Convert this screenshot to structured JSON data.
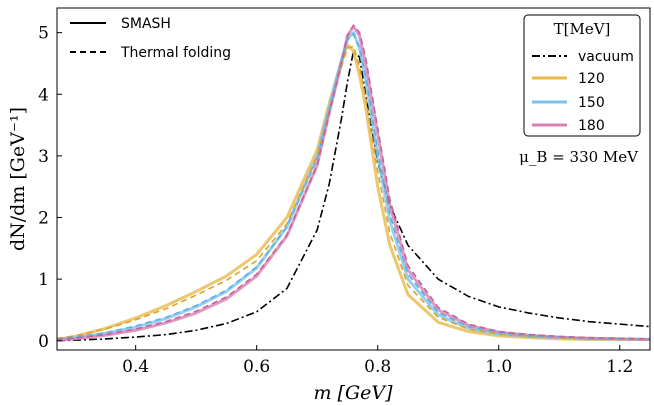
{
  "chart_data": {
    "type": "line",
    "xlabel": "m [GeV]",
    "ylabel": "dN/dm [GeV⁻¹]",
    "xlim": [
      0.27,
      1.25
    ],
    "ylim": [
      -0.15,
      5.4
    ],
    "x_ticks": [
      "0.4",
      "0.6",
      "0.8",
      "1.0",
      "1.2"
    ],
    "y_ticks": [
      "0",
      "1",
      "2",
      "3",
      "4",
      "5"
    ],
    "style_legend": {
      "placement": "top-left",
      "entries": [
        {
          "label": "SMASH",
          "dash": "solid"
        },
        {
          "label": "Thermal folding",
          "dash": "dashed"
        }
      ]
    },
    "temperature_legend": {
      "placement": "top-right",
      "title": "T[MeV]",
      "entries": [
        {
          "label": "vacuum",
          "color": "#000000",
          "dash": "dashdot"
        },
        {
          "label": "120",
          "color": "#e8b84a",
          "dash": "solid"
        },
        {
          "label": "150",
          "color": "#7cc3ec",
          "dash": "solid"
        },
        {
          "label": "180",
          "color": "#d67fb1",
          "dash": "solid"
        }
      ]
    },
    "annotation": "μ_B = 330 MeV",
    "series": [
      {
        "name": "vacuum",
        "color": "#000000",
        "dash": "dashdot",
        "x": [
          0.27,
          0.3,
          0.35,
          0.4,
          0.45,
          0.5,
          0.55,
          0.6,
          0.65,
          0.7,
          0.72,
          0.74,
          0.75,
          0.76,
          0.77,
          0.78,
          0.8,
          0.82,
          0.85,
          0.9,
          0.95,
          1.0,
          1.05,
          1.1,
          1.15,
          1.2,
          1.25
        ],
        "y": [
          0.0,
          0.01,
          0.03,
          0.06,
          0.1,
          0.17,
          0.28,
          0.47,
          0.85,
          1.8,
          2.55,
          3.6,
          4.2,
          4.7,
          4.6,
          4.0,
          2.9,
          2.2,
          1.55,
          1.0,
          0.72,
          0.55,
          0.45,
          0.37,
          0.31,
          0.27,
          0.23
        ]
      },
      {
        "name": "120",
        "color": "#e8b84a",
        "dash": "solid",
        "x": [
          0.27,
          0.3,
          0.35,
          0.4,
          0.45,
          0.5,
          0.55,
          0.6,
          0.65,
          0.7,
          0.72,
          0.74,
          0.75,
          0.76,
          0.77,
          0.78,
          0.8,
          0.82,
          0.85,
          0.9,
          0.95,
          1.0,
          1.05,
          1.1,
          1.15,
          1.2,
          1.25
        ],
        "y": [
          0.02,
          0.07,
          0.2,
          0.37,
          0.57,
          0.8,
          1.05,
          1.4,
          2.0,
          3.1,
          3.85,
          4.55,
          4.8,
          4.7,
          4.3,
          3.8,
          2.5,
          1.55,
          0.75,
          0.3,
          0.15,
          0.08,
          0.05,
          0.03,
          0.02,
          0.02,
          0.02
        ]
      },
      {
        "name": "150",
        "color": "#7cc3ec",
        "dash": "solid",
        "x": [
          0.27,
          0.3,
          0.35,
          0.4,
          0.45,
          0.5,
          0.55,
          0.6,
          0.65,
          0.7,
          0.72,
          0.74,
          0.75,
          0.76,
          0.77,
          0.78,
          0.8,
          0.82,
          0.85,
          0.9,
          0.95,
          1.0,
          1.05,
          1.1,
          1.15,
          1.2,
          1.25
        ],
        "y": [
          0.02,
          0.05,
          0.12,
          0.22,
          0.36,
          0.55,
          0.8,
          1.18,
          1.85,
          3.0,
          3.8,
          4.55,
          4.9,
          5.0,
          4.75,
          4.25,
          3.0,
          1.95,
          1.0,
          0.42,
          0.2,
          0.11,
          0.07,
          0.05,
          0.03,
          0.03,
          0.02
        ]
      },
      {
        "name": "180",
        "color": "#d67fb1",
        "dash": "solid",
        "x": [
          0.27,
          0.3,
          0.35,
          0.4,
          0.45,
          0.5,
          0.55,
          0.6,
          0.65,
          0.7,
          0.72,
          0.74,
          0.75,
          0.76,
          0.77,
          0.78,
          0.8,
          0.82,
          0.85,
          0.9,
          0.95,
          1.0,
          1.05,
          1.1,
          1.15,
          1.2,
          1.25
        ],
        "y": [
          0.01,
          0.03,
          0.09,
          0.17,
          0.29,
          0.45,
          0.68,
          1.05,
          1.7,
          2.85,
          3.7,
          4.5,
          4.95,
          5.1,
          4.95,
          4.5,
          3.35,
          2.2,
          1.15,
          0.5,
          0.25,
          0.14,
          0.09,
          0.06,
          0.04,
          0.03,
          0.02
        ]
      },
      {
        "name": "120",
        "color": "#d9a52c",
        "dash": "dashed",
        "x": [
          0.27,
          0.3,
          0.35,
          0.4,
          0.45,
          0.5,
          0.55,
          0.6,
          0.65,
          0.7,
          0.72,
          0.74,
          0.75,
          0.76,
          0.77,
          0.78,
          0.8,
          0.82,
          0.85,
          0.9,
          0.95,
          1.0,
          1.05,
          1.1,
          1.15,
          1.2,
          1.25
        ],
        "y": [
          0.04,
          0.08,
          0.19,
          0.34,
          0.52,
          0.74,
          0.98,
          1.3,
          1.9,
          3.0,
          3.75,
          4.45,
          4.75,
          4.78,
          4.45,
          3.95,
          2.75,
          1.75,
          0.9,
          0.38,
          0.19,
          0.11,
          0.07,
          0.05,
          0.03,
          0.03,
          0.02
        ]
      },
      {
        "name": "150",
        "color": "#5eaee0",
        "dash": "dashed",
        "x": [
          0.27,
          0.3,
          0.35,
          0.4,
          0.45,
          0.5,
          0.55,
          0.6,
          0.65,
          0.7,
          0.72,
          0.74,
          0.75,
          0.76,
          0.77,
          0.78,
          0.8,
          0.82,
          0.85,
          0.9,
          0.95,
          1.0,
          1.05,
          1.1,
          1.15,
          1.2,
          1.25
        ],
        "y": [
          0.03,
          0.06,
          0.13,
          0.24,
          0.38,
          0.57,
          0.82,
          1.2,
          1.85,
          2.95,
          3.75,
          4.5,
          4.88,
          4.98,
          4.75,
          4.3,
          3.1,
          2.05,
          1.08,
          0.46,
          0.23,
          0.13,
          0.08,
          0.06,
          0.04,
          0.03,
          0.03
        ]
      },
      {
        "name": "180",
        "color": "#c8609b",
        "dash": "dashed",
        "x": [
          0.27,
          0.3,
          0.35,
          0.4,
          0.45,
          0.5,
          0.55,
          0.6,
          0.65,
          0.7,
          0.72,
          0.74,
          0.75,
          0.76,
          0.77,
          0.78,
          0.8,
          0.82,
          0.85,
          0.9,
          0.95,
          1.0,
          1.05,
          1.1,
          1.15,
          1.2,
          1.25
        ],
        "y": [
          0.02,
          0.04,
          0.1,
          0.19,
          0.31,
          0.48,
          0.71,
          1.08,
          1.72,
          2.85,
          3.7,
          4.5,
          4.95,
          5.12,
          5.0,
          4.6,
          3.45,
          2.3,
          1.22,
          0.54,
          0.27,
          0.15,
          0.1,
          0.07,
          0.05,
          0.04,
          0.03
        ]
      }
    ]
  }
}
